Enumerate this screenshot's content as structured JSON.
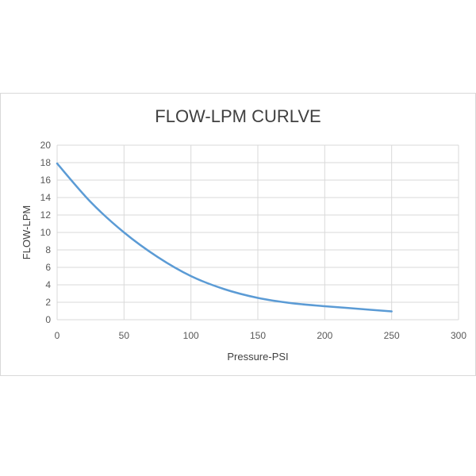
{
  "chart_data": {
    "type": "line",
    "title": "FLOW-LPM  CURLVE",
    "xlabel": "Pressure-PSI",
    "ylabel": "FLOW-LPM",
    "xlim": [
      0,
      300
    ],
    "ylim": [
      0,
      20
    ],
    "xticks": [
      0,
      50,
      100,
      150,
      200,
      250,
      300
    ],
    "yticks": [
      0,
      2,
      4,
      6,
      8,
      10,
      12,
      14,
      16,
      18,
      20
    ],
    "grid": true,
    "series": [
      {
        "color": "#5b9bd5",
        "x": [
          0,
          25,
          50,
          75,
          100,
          125,
          150,
          175,
          200,
          225,
          250
        ],
        "y": [
          17.9,
          13.5,
          10.0,
          7.2,
          5.0,
          3.5,
          2.5,
          1.9,
          1.55,
          1.25,
          0.95
        ]
      }
    ]
  }
}
